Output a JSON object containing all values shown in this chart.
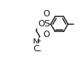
{
  "bg_color": "#ffffff",
  "line_color": "#1a1a1a",
  "line_width": 1.1,
  "figsize": [
    1.12,
    1.18
  ],
  "dpi": 100,
  "xlim": [
    0,
    11
  ],
  "ylim": [
    0,
    11
  ]
}
